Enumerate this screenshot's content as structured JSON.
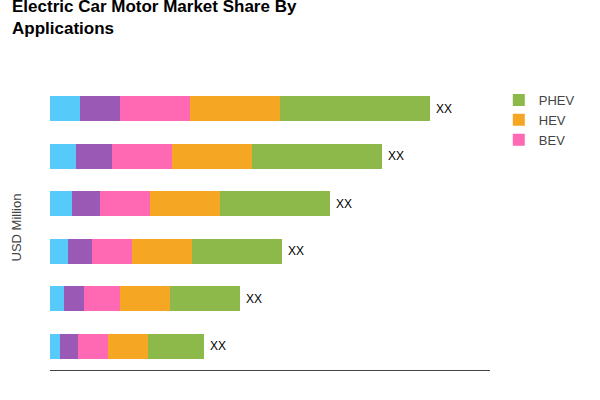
{
  "chart_data": {
    "type": "bar",
    "orientation": "horizontal",
    "stacked": true,
    "title": "Electric Car Motor Market Share By",
    "subtitle": "Applications",
    "ylabel": "USD Million",
    "categories": [
      null,
      null,
      null,
      null,
      null,
      null
    ],
    "series": [
      {
        "color": "#56CBF9",
        "values": [
          1.5,
          1.3,
          1.1,
          0.9,
          0.7,
          0.5
        ]
      },
      {
        "color": "#9B59B6",
        "values": [
          2.0,
          1.8,
          1.4,
          1.2,
          1.0,
          0.9
        ]
      },
      {
        "name": "BEV",
        "color": "#FF69B4",
        "values": [
          3.5,
          3.0,
          2.5,
          2.0,
          1.8,
          1.5
        ]
      },
      {
        "name": "HEV",
        "color": "#F5A623",
        "values": [
          4.5,
          4.0,
          3.5,
          3.0,
          2.5,
          2.0
        ]
      },
      {
        "name": "PHEV",
        "color": "#8DB84A",
        "values": [
          7.5,
          6.5,
          5.5,
          4.5,
          3.5,
          2.8
        ]
      }
    ],
    "annotations": [
      "XX",
      "XX",
      "XX",
      "XX",
      "XX",
      "XX"
    ],
    "xlim": [
      0,
      22
    ],
    "xticks": [],
    "tick_labels": false,
    "grid": false,
    "legend": "upper right"
  }
}
